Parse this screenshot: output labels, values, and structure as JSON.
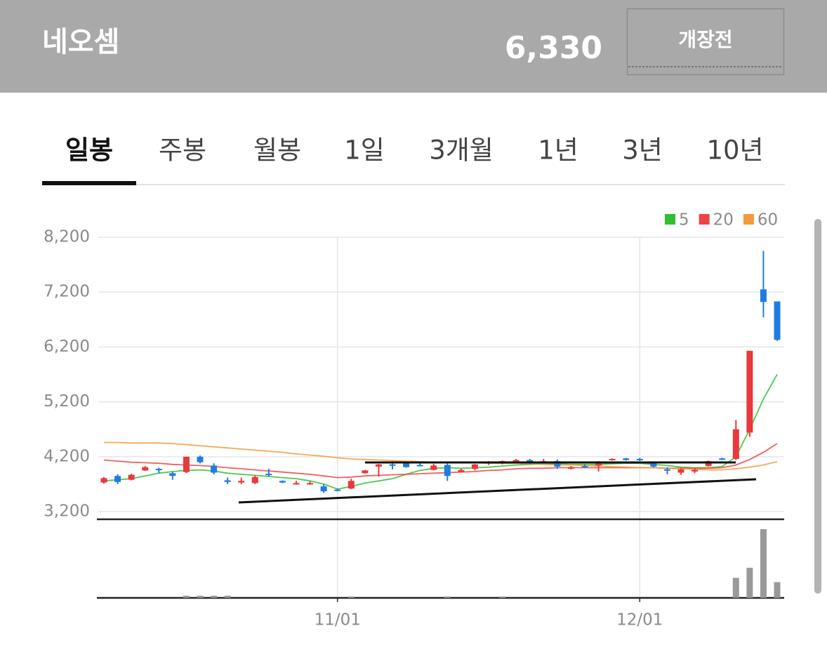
{
  "header": {
    "title": "네오셈",
    "price": "6,330",
    "status": "개장전"
  },
  "tabs": [
    "일봉",
    "주봉",
    "월봉",
    "1일",
    "3개월",
    "1년",
    "3년",
    "10년"
  ],
  "active_tab": 0,
  "chart_data": {
    "type": "candlestick",
    "categories": [
      null,
      null,
      null,
      null,
      null,
      null,
      null,
      null,
      null,
      null,
      null,
      null,
      null,
      null,
      null,
      null,
      null,
      "11/01",
      null,
      null,
      null,
      null,
      null,
      null,
      null,
      null,
      null,
      null,
      null,
      null,
      null,
      null,
      null,
      null,
      null,
      null,
      null,
      null,
      null,
      "12/01",
      null,
      null,
      null,
      null,
      null,
      null,
      null,
      null,
      null,
      null
    ],
    "open": [
      3730,
      3850,
      3780,
      3950,
      3980,
      3900,
      3920,
      4200,
      4040,
      3770,
      3730,
      3720,
      3890,
      3760,
      3700,
      3700,
      3660,
      3600,
      3620,
      3900,
      4020,
      4060,
      4080,
      4050,
      3960,
      4050,
      3920,
      3980,
      4080,
      4080,
      4120,
      4140,
      4090,
      4120,
      3980,
      4030,
      4040,
      4140,
      4170,
      4160,
      4080,
      3970,
      3910,
      3930,
      4030,
      4170,
      4160,
      4640,
      7250,
      7030
    ],
    "high": [
      3830,
      3880,
      3890,
      4030,
      4000,
      3920,
      4200,
      4220,
      4080,
      3820,
      3820,
      3860,
      3980,
      3770,
      3760,
      3750,
      3700,
      3620,
      3800,
      3960,
      4070,
      4120,
      4100,
      4080,
      4070,
      4080,
      3980,
      4070,
      4120,
      4130,
      4160,
      4160,
      4160,
      4150,
      4030,
      4060,
      4120,
      4170,
      4180,
      4180,
      4110,
      4010,
      3990,
      3990,
      4130,
      4180,
      4870,
      6130,
      7950,
      7030
    ],
    "low": [
      3710,
      3700,
      3770,
      3940,
      3900,
      3780,
      3900,
      4080,
      3880,
      3700,
      3700,
      3700,
      3840,
      3720,
      3690,
      3690,
      3540,
      3570,
      3610,
      3890,
      3840,
      3970,
      4000,
      4030,
      3950,
      3760,
      3910,
      3950,
      4050,
      4060,
      4110,
      4070,
      4080,
      3980,
      3970,
      3990,
      3930,
      4130,
      4130,
      4120,
      4000,
      3880,
      3870,
      3900,
      4020,
      4140,
      4140,
      4560,
      6740,
      6310
    ],
    "close": [
      3810,
      3740,
      3870,
      4010,
      3960,
      3850,
      4200,
      4100,
      3910,
      3740,
      3760,
      3830,
      3870,
      3730,
      3720,
      3720,
      3570,
      3580,
      3760,
      3950,
      4060,
      4040,
      4010,
      4040,
      4040,
      3850,
      3960,
      4060,
      4110,
      4120,
      4140,
      4080,
      4120,
      4020,
      4010,
      4010,
      4110,
      4160,
      4140,
      4140,
      4020,
      3950,
      3970,
      3960,
      4120,
      4150,
      4700,
      6130,
      7020,
      6330
    ],
    "up_color": "#e8393d",
    "down_color": "#1f7de0",
    "series": [
      {
        "name": "5",
        "color": "#2fbf2f",
        "values": [
          3760,
          3780,
          3800,
          3850,
          3900,
          3930,
          3950,
          3960,
          3940,
          3900,
          3880,
          3860,
          3840,
          3820,
          3800,
          3760,
          3700,
          3610,
          3660,
          3720,
          3760,
          3800,
          3880,
          3950,
          3990,
          4000,
          3990,
          4000,
          4010,
          4030,
          4050,
          4060,
          4070,
          4070,
          4060,
          4060,
          4060,
          4070,
          4080,
          4080,
          4060,
          4040,
          4010,
          4000,
          4000,
          4020,
          4200,
          4700,
          5250,
          5700
        ]
      },
      {
        "name": "20",
        "color": "#ee4444",
        "values": [
          4140,
          4120,
          4100,
          4090,
          4080,
          4060,
          4050,
          4040,
          4020,
          4000,
          3980,
          3960,
          3940,
          3920,
          3900,
          3880,
          3850,
          3820,
          3830,
          3850,
          3860,
          3870,
          3880,
          3890,
          3900,
          3910,
          3920,
          3930,
          3950,
          3960,
          3980,
          3990,
          3990,
          4000,
          4000,
          4000,
          4000,
          4000,
          4000,
          4000,
          4000,
          3990,
          3990,
          3990,
          3990,
          4000,
          4050,
          4150,
          4280,
          4440
        ]
      },
      {
        "name": "60",
        "color": "#f39a3c",
        "values": [
          4460,
          4460,
          4450,
          4450,
          4450,
          4440,
          4420,
          4400,
          4380,
          4360,
          4340,
          4320,
          4300,
          4280,
          4250,
          4230,
          4210,
          4180,
          4160,
          4150,
          4140,
          4130,
          4120,
          4110,
          4100,
          4100,
          4090,
          4090,
          4080,
          4080,
          4080,
          4070,
          4060,
          4050,
          4050,
          4040,
          4030,
          4020,
          4010,
          4000,
          4000,
          3990,
          3980,
          3970,
          3960,
          3960,
          3980,
          4010,
          4050,
          4110
        ]
      }
    ],
    "volume": [
      0,
      0,
      0,
      0,
      0,
      0,
      3,
      3,
      3,
      3,
      0,
      0,
      0,
      0,
      0,
      0,
      0,
      0,
      2,
      0,
      0,
      0,
      0,
      0,
      0,
      2,
      0,
      0,
      0,
      2,
      0,
      0,
      0,
      0,
      0,
      0,
      0,
      0,
      0,
      0,
      0,
      0,
      0,
      0,
      0,
      0,
      28,
      42,
      96,
      22
    ],
    "volume_color": "#999999",
    "volume_lim": [
      0,
      100
    ],
    "ylim": [
      3060,
      8200
    ],
    "yticks": [
      {
        "value": 8200,
        "label": "8,200"
      },
      {
        "value": 7200,
        "label": "7,200"
      },
      {
        "value": 6200,
        "label": "6,200"
      },
      {
        "value": 5200,
        "label": "5,200"
      },
      {
        "value": 4200,
        "label": "4,200"
      },
      {
        "value": 3200,
        "label": "3,200"
      }
    ],
    "grid": true
  }
}
